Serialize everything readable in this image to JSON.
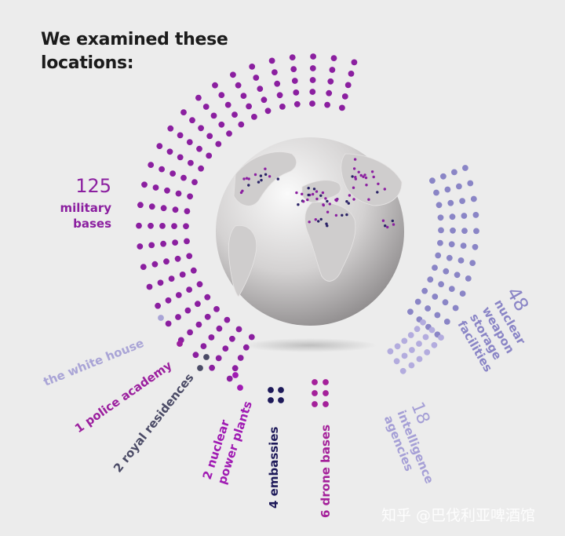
{
  "title": {
    "line1": "We examined these",
    "line2": "locations:"
  },
  "chart_data": {
    "type": "dot-distribution",
    "title": "We examined these locations:",
    "categories": [
      {
        "name": "military bases",
        "count": 125,
        "count_label": "125",
        "label_lines": [
          "military",
          "bases"
        ],
        "color": "#8b1fa0"
      },
      {
        "name": "nuclear weapon storage facilities",
        "count": 48,
        "count_label": "48",
        "label_lines": [
          "nuclear",
          "weapon",
          "storage",
          "facilities"
        ],
        "color": "#8a85c6"
      },
      {
        "name": "intelligence agencies",
        "count": 18,
        "count_label": "18",
        "label_lines": [
          "intelligence",
          "agencies"
        ],
        "color": "#b3acde"
      },
      {
        "name": "drone bases",
        "count": 6,
        "label": "6 drone bases",
        "color": "#a4209a"
      },
      {
        "name": "embassies",
        "count": 4,
        "label": "4 embassies",
        "color": "#1e1a5a"
      },
      {
        "name": "nuclear power plants",
        "count": 2,
        "label_lines": [
          "2 nuclear",
          "power plants"
        ],
        "color": "#a01bb3"
      },
      {
        "name": "royal residences",
        "count": 2,
        "label": "2 royal residences",
        "color": "#4b4b66"
      },
      {
        "name": "police academy",
        "count": 1,
        "label": "1 police academy",
        "color": "#9b1f9e"
      },
      {
        "name": "the white house",
        "count": 1,
        "label": "the white house",
        "color": "#a9a4d6"
      }
    ]
  },
  "watermark": "知乎 @巴伐利亚啤酒馆"
}
